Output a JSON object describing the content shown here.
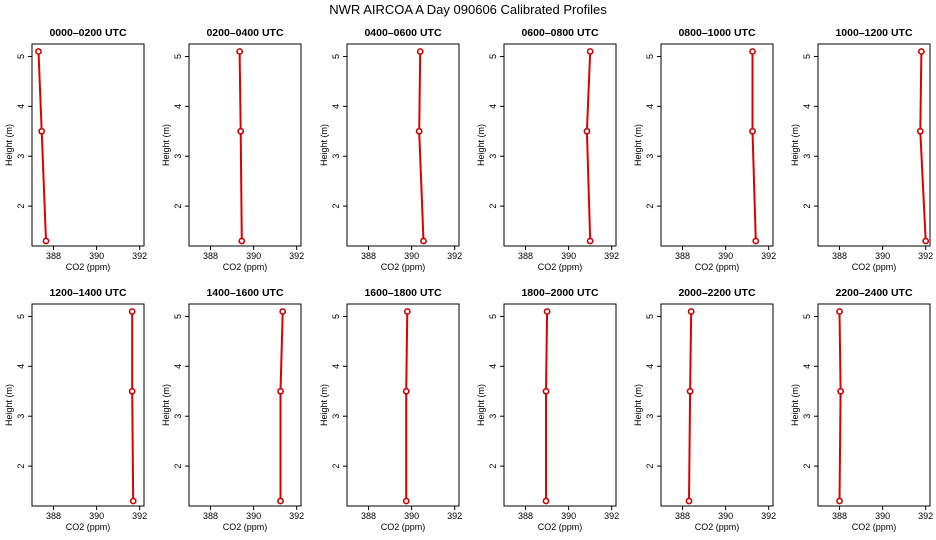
{
  "chart_data": {
    "type": "line",
    "title": "NWR AIRCOA A  Day 090606  Calibrated Profiles",
    "xlabel": "CO2 (ppm)",
    "ylabel": "Height (m)",
    "xlim": [
      387,
      392.2
    ],
    "ylim": [
      1.2,
      5.25
    ],
    "x_ticks": [
      388,
      390,
      392
    ],
    "y_ticks": [
      2,
      3,
      4,
      5
    ],
    "colors": {
      "line": "#dd0000",
      "marker": "#cc0000",
      "axis": "#000000"
    },
    "panels": [
      {
        "title": "0000–0200 UTC",
        "series": [
          {
            "co2": 387.65,
            "height": 1.3
          },
          {
            "co2": 387.45,
            "height": 3.5
          },
          {
            "co2": 387.3,
            "height": 5.1
          }
        ]
      },
      {
        "title": "0200–0400 UTC",
        "series": [
          {
            "co2": 389.45,
            "height": 1.3
          },
          {
            "co2": 389.4,
            "height": 3.5
          },
          {
            "co2": 389.35,
            "height": 5.1
          }
        ]
      },
      {
        "title": "0400–0600 UTC",
        "series": [
          {
            "co2": 390.55,
            "height": 1.3
          },
          {
            "co2": 390.35,
            "height": 3.5
          },
          {
            "co2": 390.4,
            "height": 5.1
          }
        ]
      },
      {
        "title": "0600–0800 UTC",
        "series": [
          {
            "co2": 391.0,
            "height": 1.3
          },
          {
            "co2": 390.85,
            "height": 3.5
          },
          {
            "co2": 391.0,
            "height": 5.1
          }
        ]
      },
      {
        "title": "0800–1000 UTC",
        "series": [
          {
            "co2": 391.4,
            "height": 1.3
          },
          {
            "co2": 391.25,
            "height": 3.5
          },
          {
            "co2": 391.25,
            "height": 5.1
          }
        ]
      },
      {
        "title": "1000–1200 UTC",
        "series": [
          {
            "co2": 392.0,
            "height": 1.3
          },
          {
            "co2": 391.75,
            "height": 3.5
          },
          {
            "co2": 391.8,
            "height": 5.1
          }
        ]
      },
      {
        "title": "1200–1400 UTC",
        "series": [
          {
            "co2": 391.7,
            "height": 1.3
          },
          {
            "co2": 391.65,
            "height": 3.5
          },
          {
            "co2": 391.65,
            "height": 5.1
          }
        ]
      },
      {
        "title": "1400–1600 UTC",
        "series": [
          {
            "co2": 391.25,
            "height": 1.3
          },
          {
            "co2": 391.25,
            "height": 3.5
          },
          {
            "co2": 391.35,
            "height": 5.1
          }
        ]
      },
      {
        "title": "1600–1800 UTC",
        "series": [
          {
            "co2": 389.75,
            "height": 1.3
          },
          {
            "co2": 389.75,
            "height": 3.5
          },
          {
            "co2": 389.8,
            "height": 5.1
          }
        ]
      },
      {
        "title": "1800–2000 UTC",
        "series": [
          {
            "co2": 388.95,
            "height": 1.3
          },
          {
            "co2": 388.95,
            "height": 3.5
          },
          {
            "co2": 389.0,
            "height": 5.1
          }
        ]
      },
      {
        "title": "2000–2200 UTC",
        "series": [
          {
            "co2": 388.3,
            "height": 1.3
          },
          {
            "co2": 388.35,
            "height": 3.5
          },
          {
            "co2": 388.4,
            "height": 5.1
          }
        ]
      },
      {
        "title": "2200–2400 UTC",
        "series": [
          {
            "co2": 388.0,
            "height": 1.3
          },
          {
            "co2": 388.05,
            "height": 3.5
          },
          {
            "co2": 388.0,
            "height": 5.1
          }
        ]
      }
    ]
  }
}
